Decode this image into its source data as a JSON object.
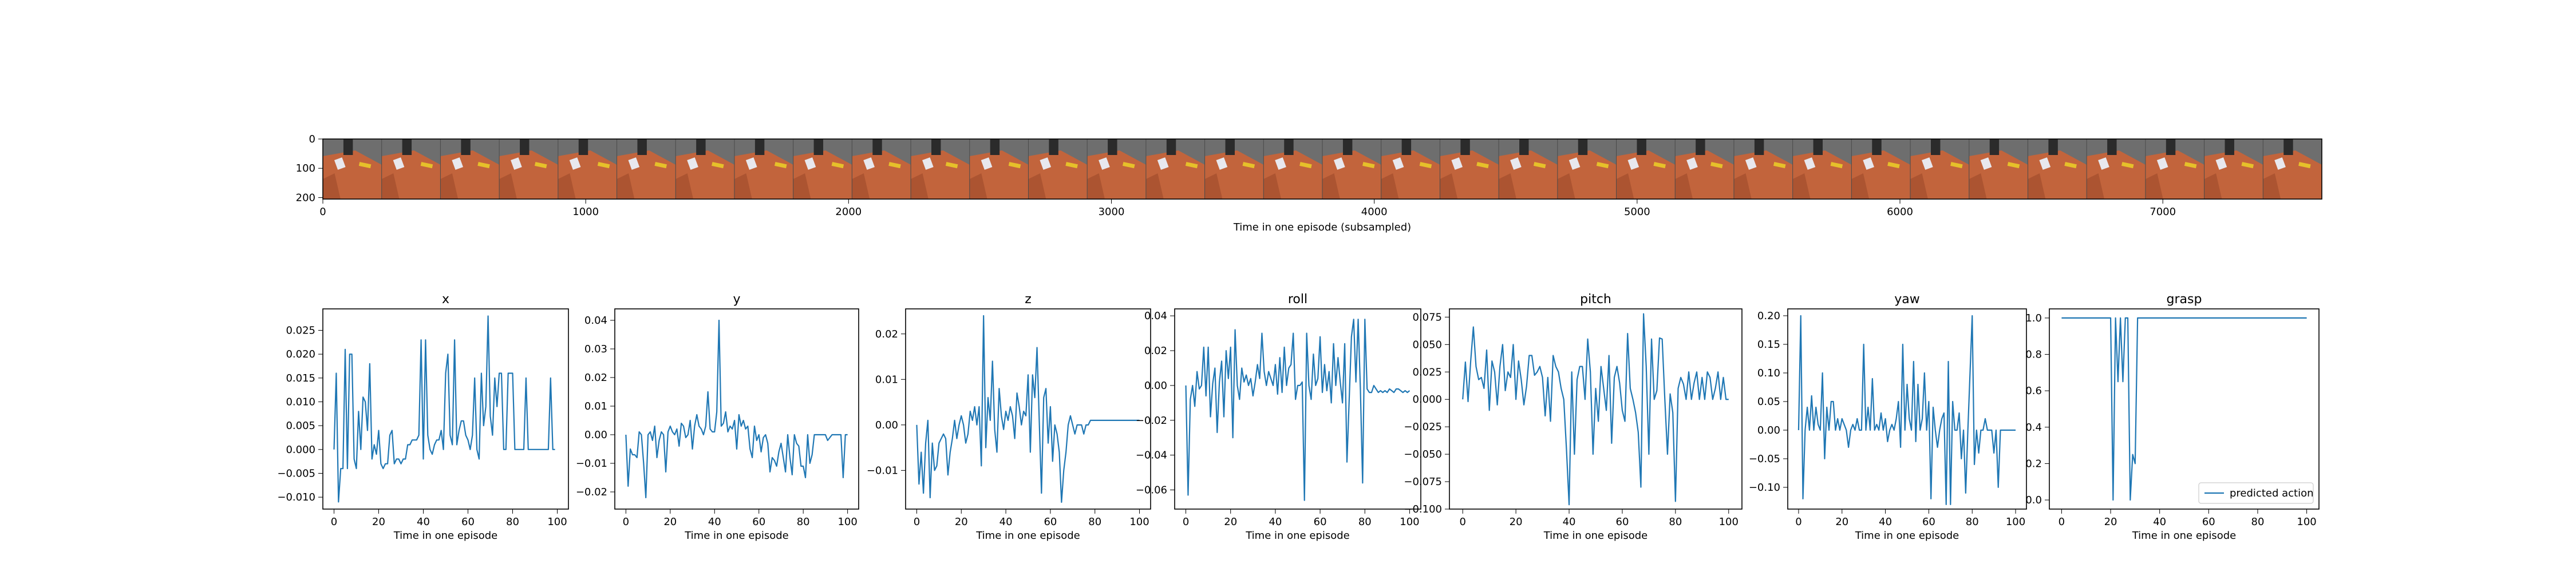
{
  "strip": {
    "xlabel": "Time in one episode (subsampled)",
    "xticks": [
      0,
      1000,
      2000,
      3000,
      4000,
      5000,
      6000,
      7000
    ],
    "yticks": [
      0,
      100,
      200
    ],
    "xlim": [
      0,
      7605
    ],
    "ylim": [
      0,
      205
    ],
    "frame_count": 34,
    "colors": {
      "table": "#c2643c",
      "table_dark": "#9c4a2a",
      "background": "#6e6e6e",
      "robot": "#2b2b2b",
      "object_yellow": "#e6c02a",
      "object_white": "#e8e8ee"
    }
  },
  "chart_data": [
    {
      "type": "line",
      "title": "x",
      "xlabel": "Time in one episode",
      "xlim": [
        -5,
        105
      ],
      "ylim": [
        -0.0125,
        0.0295
      ],
      "xticks": [
        0,
        20,
        40,
        60,
        80,
        100
      ],
      "yticks": [
        -0.01,
        -0.005,
        0.0,
        0.005,
        0.01,
        0.015,
        0.02,
        0.025
      ],
      "ytick_labels": [
        "−0.010",
        "−0.005",
        "0.000",
        "0.005",
        "0.010",
        "0.015",
        "0.020",
        "0.025"
      ],
      "series": [
        {
          "values": [
            0.0,
            0.016,
            -0.011,
            -0.004,
            -0.004,
            0.021,
            -0.004,
            0.02,
            0.02,
            -0.002,
            -0.004,
            0.008,
            0.0,
            0.011,
            0.01,
            0.004,
            0.018,
            -0.002,
            0.001,
            -0.001,
            0.004,
            -0.003,
            -0.004,
            -0.003,
            -0.003,
            0.003,
            0.004,
            -0.003,
            -0.002,
            -0.002,
            -0.003,
            -0.002,
            -0.002,
            0.001,
            0.001,
            0.002,
            0.002,
            0.002,
            0.003,
            0.023,
            -0.002,
            0.023,
            0.003,
            0.0,
            -0.001,
            0.001,
            0.002,
            0.002,
            0.004,
            0.0,
            0.016,
            0.02,
            0.003,
            0.001,
            0.023,
            0.001,
            0.004,
            0.006,
            0.006,
            0.003,
            0.002,
            0.0,
            0.003,
            0.015,
            0.0,
            -0.002,
            0.016,
            0.005,
            0.009,
            0.028,
            0.007,
            0.003,
            0.015,
            0.009,
            0.016,
            0.016,
            0.0,
            0.0,
            0.016,
            0.016,
            0.016,
            0.0,
            0.0,
            0.0,
            0.0,
            0.0,
            0.015,
            0.0,
            0.0,
            0.0,
            0.0,
            0.0,
            0.0,
            0.0,
            0.0,
            0.0,
            0.0,
            0.015,
            0.0,
            0.0
          ]
        }
      ]
    },
    {
      "type": "line",
      "title": "y",
      "xlabel": "Time in one episode",
      "xlim": [
        -5,
        105
      ],
      "ylim": [
        -0.026,
        0.044
      ],
      "xticks": [
        0,
        20,
        40,
        60,
        80,
        100
      ],
      "yticks": [
        -0.02,
        -0.01,
        0.0,
        0.01,
        0.02,
        0.03,
        0.04
      ],
      "ytick_labels": [
        "−0.02",
        "−0.01",
        "0.00",
        "0.01",
        "0.02",
        "0.03",
        "0.04"
      ],
      "series": [
        {
          "values": [
            0.0,
            -0.018,
            -0.005,
            -0.007,
            -0.007,
            -0.008,
            0.001,
            0.0,
            -0.01,
            -0.022,
            0.0,
            0.001,
            -0.002,
            0.003,
            -0.008,
            -0.002,
            0.001,
            0.0,
            -0.013,
            0.001,
            0.003,
            0.001,
            0.0,
            0.002,
            -0.004,
            0.004,
            0.003,
            -0.001,
            0.0,
            0.005,
            -0.005,
            0.003,
            0.007,
            0.003,
            0.002,
            0.0,
            0.003,
            0.015,
            0.002,
            0.001,
            0.001,
            0.008,
            0.04,
            0.003,
            0.004,
            0.008,
            0.001,
            0.003,
            0.002,
            0.005,
            -0.005,
            0.007,
            0.003,
            0.005,
            0.002,
            0.003,
            -0.005,
            -0.008,
            0.003,
            -0.002,
            0.0,
            -0.006,
            -0.001,
            0.0,
            -0.003,
            -0.013,
            -0.008,
            -0.009,
            -0.011,
            -0.006,
            -0.003,
            -0.008,
            -0.013,
            0.0,
            -0.008,
            -0.014,
            0.0,
            -0.003,
            -0.004,
            -0.011,
            -0.011,
            -0.015,
            0.0,
            -0.01,
            -0.007,
            0.0,
            0.0,
            0.0,
            0.0,
            0.0,
            0.0,
            -0.002,
            -0.001,
            0.0,
            0.0,
            0.0,
            0.0,
            0.0,
            -0.015,
            0.0,
            0.0
          ]
        }
      ]
    },
    {
      "type": "line",
      "title": "z",
      "xlabel": "Time in one episode",
      "xlim": [
        -5,
        105
      ],
      "ylim": [
        -0.0185,
        0.0255
      ],
      "xticks": [
        0,
        20,
        40,
        60,
        80,
        100
      ],
      "yticks": [
        -0.01,
        0.0,
        0.01,
        0.02
      ],
      "ytick_labels": [
        "−0.01",
        "0.00",
        "0.01",
        "0.02"
      ],
      "series": [
        {
          "values": [
            0.0,
            -0.013,
            -0.006,
            -0.015,
            -0.004,
            0.001,
            -0.016,
            -0.004,
            -0.01,
            -0.009,
            -0.004,
            -0.003,
            -0.002,
            -0.003,
            -0.011,
            -0.006,
            -0.003,
            0.001,
            -0.003,
            0.0,
            0.002,
            0.0,
            -0.004,
            -0.002,
            0.003,
            0.001,
            0.004,
            0.0,
            0.004,
            -0.009,
            0.024,
            -0.005,
            0.006,
            0.001,
            0.014,
            -0.001,
            -0.006,
            0.008,
            0.002,
            -0.001,
            0.003,
            0.001,
            0.004,
            0.002,
            -0.003,
            0.007,
            0.004,
            0.0,
            0.003,
            0.002,
            0.011,
            -0.006,
            0.011,
            0.006,
            0.017,
            0.001,
            -0.015,
            0.006,
            0.008,
            -0.004,
            0.004,
            -0.008,
            0.0,
            -0.002,
            -0.006,
            -0.017,
            -0.01,
            -0.006,
            0.0,
            0.002,
            0.0,
            -0.002,
            0.0,
            0.0,
            0.0,
            -0.002,
            0.0,
            0.0,
            0.001,
            0.001,
            0.001,
            0.001,
            0.001,
            0.001,
            0.001,
            0.001,
            0.001,
            0.001,
            0.001,
            0.001,
            0.001,
            0.001,
            0.001,
            0.001,
            0.001,
            0.001,
            0.001,
            0.001,
            0.001,
            0.001,
            0.001
          ]
        }
      ]
    },
    {
      "type": "line",
      "title": "roll",
      "xlabel": "Time in one episode",
      "xlim": [
        -5,
        105
      ],
      "ylim": [
        -0.071,
        0.044
      ],
      "xticks": [
        0,
        20,
        40,
        60,
        80,
        100
      ],
      "yticks": [
        -0.06,
        -0.04,
        -0.02,
        0.0,
        0.02,
        0.04
      ],
      "ytick_labels": [
        "−0.06",
        "−0.04",
        "−0.02",
        "0.00",
        "0.02",
        "0.04"
      ],
      "series": [
        {
          "values": [
            0.0,
            -0.063,
            -0.008,
            0.0,
            -0.012,
            0.008,
            -0.002,
            0.0,
            0.022,
            -0.006,
            0.022,
            -0.018,
            0.001,
            0.01,
            -0.027,
            0.002,
            0.014,
            -0.018,
            0.02,
            0.004,
            0.022,
            -0.03,
            0.032,
            0.0,
            -0.008,
            0.01,
            0.002,
            0.006,
            0.0,
            0.004,
            -0.006,
            0.002,
            0.012,
            0.004,
            0.03,
            0.008,
            0.0,
            0.008,
            0.004,
            0.0,
            0.012,
            -0.005,
            0.016,
            -0.004,
            0.022,
            0.0,
            0.01,
            0.012,
            0.03,
            -0.008,
            0.0,
            0.0,
            0.002,
            -0.066,
            0.03,
            0.0,
            -0.008,
            0.018,
            0.0,
            0.004,
            0.028,
            -0.004,
            0.012,
            -0.003,
            0.008,
            -0.01,
            0.024,
            0.0,
            0.016,
            0.002,
            -0.01,
            0.024,
            -0.044,
            -0.008,
            0.028,
            0.038,
            0.002,
            0.038,
            -0.002,
            -0.056,
            0.038,
            -0.002,
            -0.004,
            -0.004,
            0.0,
            -0.002,
            -0.004,
            -0.003,
            -0.004,
            -0.003,
            -0.004,
            -0.002,
            -0.003,
            -0.004,
            -0.002,
            -0.002,
            -0.003,
            -0.004,
            -0.003,
            -0.004,
            -0.003
          ]
        }
      ]
    },
    {
      "type": "line",
      "title": "pitch",
      "xlabel": "Time in one episode",
      "xlim": [
        -5,
        105
      ],
      "ylim": [
        -0.1,
        0.0825
      ],
      "xticks": [
        0,
        20,
        40,
        60,
        80,
        100
      ],
      "yticks": [
        -0.1,
        -0.075,
        -0.05,
        -0.025,
        0.0,
        0.025,
        0.05,
        0.075
      ],
      "ytick_labels": [
        "−0.100",
        "−0.075",
        "−0.050",
        "−0.025",
        "0.000",
        "0.025",
        "0.050",
        "0.075"
      ],
      "series": [
        {
          "values": [
            0.0,
            0.034,
            -0.002,
            0.035,
            0.066,
            0.03,
            0.018,
            0.02,
            0.01,
            0.045,
            -0.01,
            0.035,
            0.025,
            -0.005,
            0.03,
            0.05,
            0.008,
            0.025,
            0.02,
            0.05,
            0.0,
            0.035,
            0.018,
            -0.005,
            0.012,
            0.04,
            0.04,
            0.022,
            0.025,
            0.03,
            0.02,
            -0.015,
            0.02,
            -0.02,
            0.04,
            0.03,
            0.025,
            0.01,
            0.0,
            -0.045,
            -0.096,
            0.025,
            -0.05,
            0.018,
            0.03,
            0.03,
            0.0,
            0.055,
            0.025,
            -0.05,
            0.01,
            -0.02,
            0.03,
            0.01,
            -0.01,
            0.04,
            -0.04,
            0.02,
            0.03,
            0.015,
            -0.01,
            -0.02,
            0.06,
            0.01,
            0.0,
            -0.012,
            -0.03,
            -0.08,
            0.078,
            0.03,
            -0.05,
            0.055,
            0.0,
            0.008,
            0.056,
            0.055,
            0.0,
            -0.05,
            0.005,
            -0.012,
            -0.093,
            0.01,
            0.02,
            0.014,
            0.0,
            0.025,
            0.0,
            0.015,
            0.025,
            0.0,
            0.02,
            0.0,
            0.025,
            0.02,
            0.0,
            0.01,
            0.025,
            0.0,
            0.02,
            0.0,
            0.0
          ]
        }
      ]
    },
    {
      "type": "line",
      "title": "yaw",
      "xlabel": "Time in one episode",
      "xlim": [
        -5,
        105
      ],
      "ylim": [
        -0.138,
        0.212
      ],
      "xticks": [
        0,
        20,
        40,
        60,
        80,
        100
      ],
      "yticks": [
        -0.1,
        -0.05,
        0.0,
        0.05,
        0.1,
        0.15,
        0.2
      ],
      "ytick_labels": [
        "−0.10",
        "−0.05",
        "0.00",
        "0.05",
        "0.10",
        "0.15",
        "0.20"
      ],
      "series": [
        {
          "values": [
            0.0,
            0.2,
            -0.12,
            0.0,
            0.04,
            0.0,
            0.06,
            0.0,
            0.04,
            0.01,
            0.0,
            0.1,
            -0.05,
            0.04,
            0.0,
            0.05,
            0.05,
            0.0,
            0.02,
            0.0,
            0.02,
            0.01,
            0.0,
            -0.03,
            0.0,
            0.01,
            0.0,
            0.02,
            0.0,
            0.0,
            0.15,
            0.0,
            0.04,
            0.0,
            0.09,
            0.0,
            0.01,
            0.0,
            0.03,
            0.0,
            0.02,
            -0.02,
            0.0,
            0.01,
            0.0,
            0.02,
            0.05,
            -0.03,
            0.15,
            0.0,
            0.08,
            0.02,
            0.0,
            0.12,
            -0.02,
            0.08,
            0.0,
            0.02,
            0.1,
            0.0,
            0.05,
            -0.12,
            0.04,
            0.0,
            -0.03,
            0.0,
            0.02,
            0.03,
            -0.13,
            0.12,
            -0.13,
            0.05,
            0.0,
            0.0,
            0.03,
            -0.05,
            0.0,
            -0.11,
            0.0,
            0.1,
            0.2,
            -0.06,
            0.0,
            -0.04,
            0.0,
            0.0,
            0.02,
            0.0,
            0.0,
            0.0,
            -0.04,
            0.0,
            -0.1,
            0.0,
            0.0,
            0.0,
            0.0,
            0.0,
            0.0,
            0.0,
            0.0
          ]
        }
      ]
    },
    {
      "type": "line",
      "title": "grasp",
      "xlabel": "Time in one episode",
      "xlim": [
        -5,
        105
      ],
      "ylim": [
        -0.05,
        1.05
      ],
      "xticks": [
        0,
        20,
        40,
        60,
        80,
        100
      ],
      "yticks": [
        0.0,
        0.2,
        0.4,
        0.6,
        0.8,
        1.0
      ],
      "ytick_labels": [
        "0.0",
        "0.2",
        "0.4",
        "0.6",
        "0.8",
        "1.0"
      ],
      "legend": {
        "label": "predicted action",
        "placement": "lower-right"
      },
      "series": [
        {
          "name": "predicted action",
          "values": [
            1,
            1,
            1,
            1,
            1,
            1,
            1,
            1,
            1,
            1,
            1,
            1,
            1,
            1,
            1,
            1,
            1,
            1,
            1,
            1,
            1,
            0,
            1,
            0.65,
            1,
            0.65,
            1,
            1,
            0,
            0.25,
            0.2,
            1,
            1,
            1,
            1,
            1,
            1,
            1,
            1,
            1,
            1,
            1,
            1,
            1,
            1,
            1,
            1,
            1,
            1,
            1,
            1,
            1,
            1,
            1,
            1,
            1,
            1,
            1,
            1,
            1,
            1,
            1,
            1,
            1,
            1,
            1,
            1,
            1,
            1,
            1,
            1,
            1,
            1,
            1,
            1,
            1,
            1,
            1,
            1,
            1,
            1,
            1,
            1,
            1,
            1,
            1,
            1,
            1,
            1,
            1,
            1,
            1,
            1,
            1,
            1,
            1,
            1,
            1,
            1,
            1,
            1
          ]
        }
      ]
    }
  ],
  "colors": {
    "line": "#1f77b4",
    "axis": "#000000",
    "text": "#000000",
    "legend_border": "#cccccc"
  }
}
